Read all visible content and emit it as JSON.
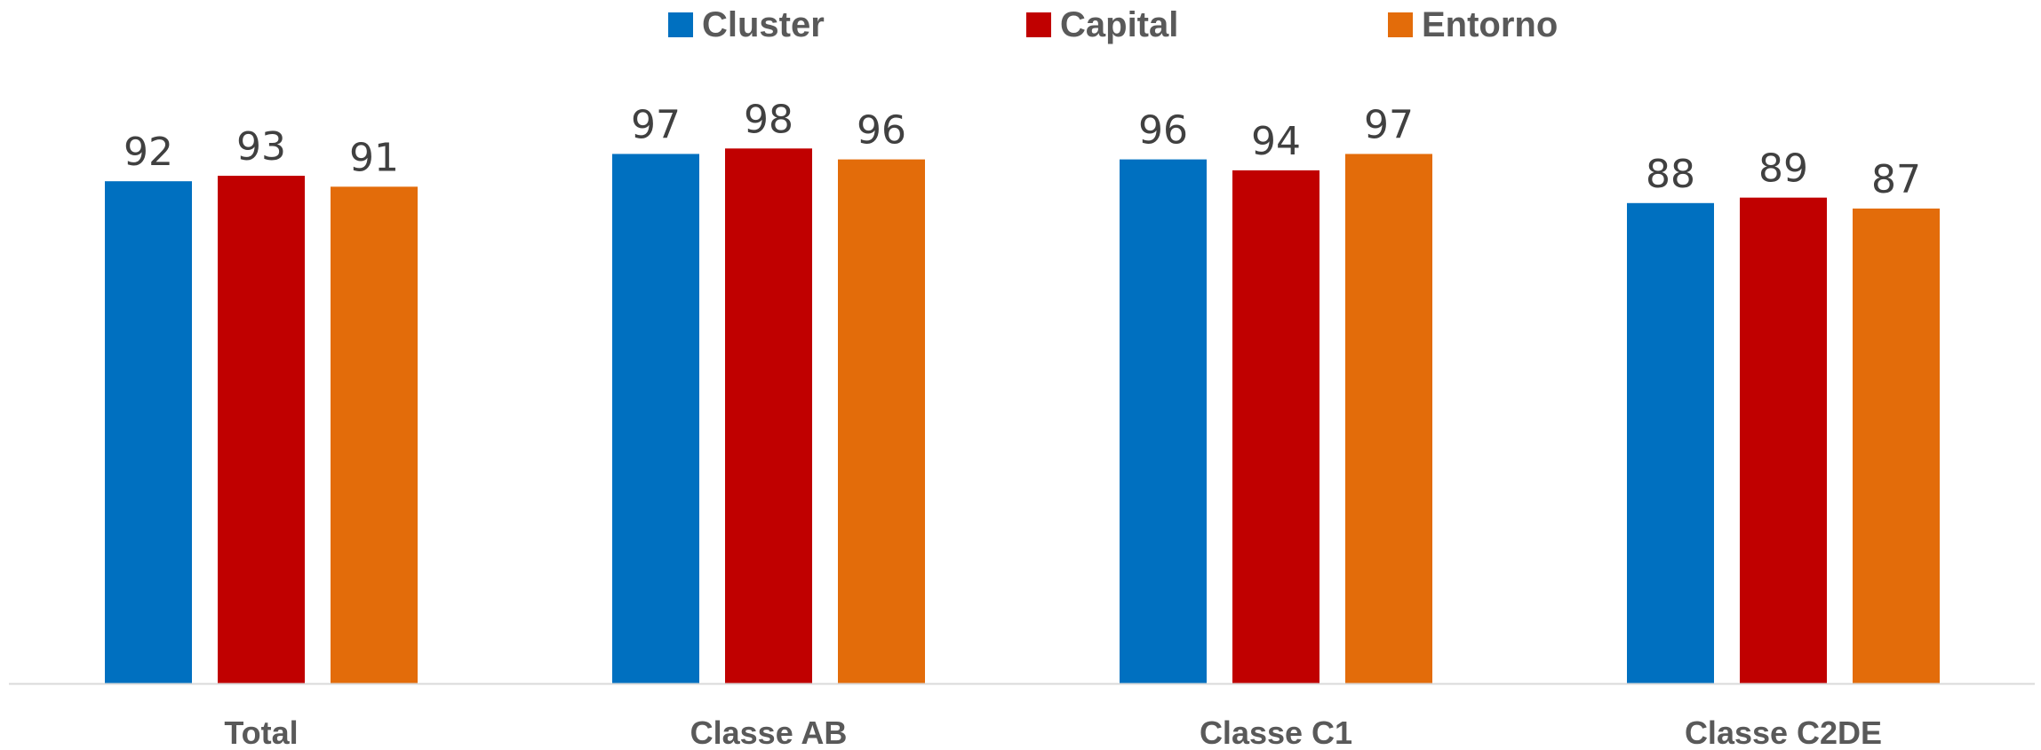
{
  "chart_data": {
    "type": "bar",
    "title": "",
    "xlabel": "",
    "ylabel": "",
    "ylim": [
      0,
      100
    ],
    "grid": false,
    "legend_position": "top-center",
    "categories": [
      "Total",
      "Classe AB",
      "Classe C1",
      "Classe C2DE"
    ],
    "series": [
      {
        "name": "Cluster",
        "color": "#0070C0",
        "values": [
          92,
          97,
          96,
          88
        ]
      },
      {
        "name": "Capital",
        "color": "#C00000",
        "values": [
          93,
          98,
          94,
          89
        ]
      },
      {
        "name": "Entorno",
        "color": "#E36C0A",
        "values": [
          91,
          96,
          97,
          87
        ]
      }
    ],
    "axis_color": "#D9D9D9"
  }
}
